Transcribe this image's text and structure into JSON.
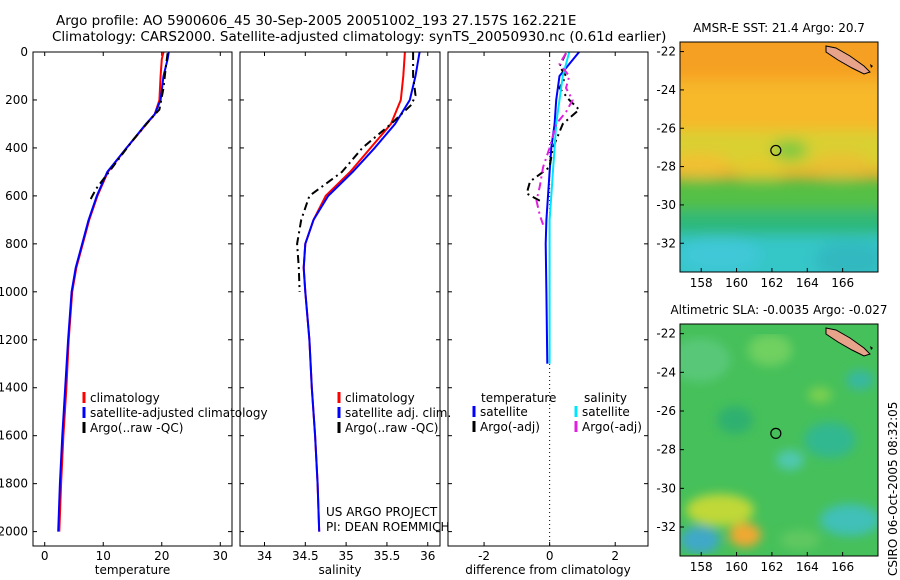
{
  "header": {
    "line1": "Argo profile: AO 5900606_45 30-Sep-2005 20051002_193 27.157S 162.221E",
    "line2": "Climatology: CARS2000. Satellite-adjusted climatology: synTS_20050930.nc (0.61d earlier)"
  },
  "credit": "CSIRO 06-Oct-2005 08:32:05",
  "colors": {
    "climatology": "#ff0000",
    "satellite": "#0000ff",
    "argo": "#000000",
    "sal_satellite": "#00e5ff",
    "sal_argo": "#e020e0"
  },
  "project_note": [
    "US ARGO PROJECT",
    "PI: DEAN ROEMMICH"
  ],
  "chart_data": [
    {
      "type": "line",
      "id": "temperature",
      "xlabel": "temperature",
      "ylabel": "",
      "xlim": [
        -2,
        32
      ],
      "ylim": [
        2060,
        0
      ],
      "xticks": [
        0,
        10,
        20,
        30
      ],
      "yticks": [
        0,
        200,
        400,
        600,
        800,
        1000,
        1200,
        1400,
        1600,
        1800,
        2000
      ],
      "legend": {
        "placement": "lower-left",
        "entries": [
          "climatology",
          "satellite-adjusted climatology",
          "Argo(..raw -QC)"
        ]
      },
      "series": [
        {
          "name": "climatology",
          "color": "#ff0000",
          "dash": "",
          "points": [
            [
              20.3,
              0
            ],
            [
              20,
              30
            ],
            [
              19.8,
              100
            ],
            [
              19.6,
              200
            ],
            [
              18.8,
              260
            ],
            [
              17.4,
              300
            ],
            [
              14,
              400
            ],
            [
              10.8,
              500
            ],
            [
              9,
              600
            ],
            [
              7.6,
              700
            ],
            [
              6.5,
              800
            ],
            [
              5.4,
              900
            ],
            [
              4.7,
              1000
            ],
            [
              4.1,
              1200
            ],
            [
              3.7,
              1400
            ],
            [
              3.2,
              1600
            ],
            [
              2.8,
              1800
            ],
            [
              2.5,
              2000
            ]
          ]
        },
        {
          "name": "satellite-adjusted climatology",
          "color": "#0000ff",
          "dash": "",
          "points": [
            [
              21.2,
              0
            ],
            [
              21,
              30
            ],
            [
              20.3,
              100
            ],
            [
              19.8,
              200
            ],
            [
              18.8,
              260
            ],
            [
              17.3,
              300
            ],
            [
              14,
              400
            ],
            [
              10.7,
              500
            ],
            [
              8.9,
              600
            ],
            [
              7.5,
              700
            ],
            [
              6.4,
              800
            ],
            [
              5.3,
              900
            ],
            [
              4.6,
              1000
            ],
            [
              4.0,
              1200
            ],
            [
              3.5,
              1400
            ],
            [
              3.0,
              1600
            ],
            [
              2.6,
              1800
            ],
            [
              2.3,
              2000
            ]
          ]
        },
        {
          "name": "Argo(..raw -QC)",
          "color": "#000000",
          "dash": "8 4 2 4",
          "points": [
            [
              21,
              5
            ],
            [
              20.7,
              60
            ],
            [
              20.3,
              150
            ],
            [
              19.6,
              240
            ],
            [
              18.1,
              280
            ],
            [
              15,
              370
            ],
            [
              11.6,
              480
            ],
            [
              8.8,
              570
            ],
            [
              7.7,
              620
            ]
          ]
        }
      ]
    },
    {
      "type": "line",
      "id": "salinity",
      "xlabel": "salinity",
      "ylabel": "",
      "xlim": [
        33.7,
        36.15
      ],
      "ylim": [
        2060,
        0
      ],
      "xticks": [
        34,
        34.5,
        35,
        35.5,
        36
      ],
      "xtick_labels": [
        "34",
        "34.5",
        "35",
        "35.5",
        "36"
      ],
      "legend": {
        "placement": "lower-left",
        "entries": [
          "climatology",
          "satellite adj. clim.",
          "Argo(..raw -QC)"
        ]
      },
      "series": [
        {
          "name": "climatology",
          "color": "#ff0000",
          "dash": "",
          "points": [
            [
              35.72,
              0
            ],
            [
              35.7,
              100
            ],
            [
              35.67,
              200
            ],
            [
              35.55,
              300
            ],
            [
              35.3,
              400
            ],
            [
              35.05,
              500
            ],
            [
              34.75,
              600
            ],
            [
              34.6,
              700
            ],
            [
              34.5,
              800
            ],
            [
              34.48,
              900
            ],
            [
              34.5,
              1000
            ],
            [
              34.55,
              1200
            ],
            [
              34.58,
              1400
            ],
            [
              34.62,
              1600
            ],
            [
              34.65,
              1800
            ],
            [
              34.67,
              2000
            ]
          ]
        },
        {
          "name": "satellite adj. clim.",
          "color": "#0000ff",
          "dash": "",
          "points": [
            [
              35.9,
              0
            ],
            [
              35.85,
              100
            ],
            [
              35.78,
              200
            ],
            [
              35.6,
              300
            ],
            [
              35.35,
              400
            ],
            [
              35.08,
              500
            ],
            [
              34.78,
              600
            ],
            [
              34.6,
              700
            ],
            [
              34.5,
              800
            ],
            [
              34.48,
              900
            ],
            [
              34.5,
              1000
            ],
            [
              34.55,
              1200
            ],
            [
              34.58,
              1400
            ],
            [
              34.62,
              1600
            ],
            [
              34.65,
              1800
            ],
            [
              34.67,
              2000
            ]
          ]
        },
        {
          "name": "Argo(..raw -QC)",
          "color": "#000000",
          "dash": "8 4 2 4",
          "points": [
            [
              35.82,
              0
            ],
            [
              35.82,
              100
            ],
            [
              35.85,
              180
            ],
            [
              35.8,
              220
            ],
            [
              35.55,
              300
            ],
            [
              35.2,
              400
            ],
            [
              34.95,
              500
            ],
            [
              34.55,
              600
            ],
            [
              34.45,
              700
            ],
            [
              34.4,
              800
            ],
            [
              34.42,
              900
            ],
            [
              34.43,
              1000
            ]
          ]
        }
      ]
    },
    {
      "type": "line",
      "id": "difference",
      "xlabel": "difference from climatology",
      "ylabel": "",
      "xlim": [
        -3.1,
        3.0
      ],
      "ylim": [
        2060,
        0
      ],
      "xticks": [
        -2,
        0,
        2
      ],
      "legend": {
        "placement": "lower-left",
        "headers": [
          "temperature",
          "salinity"
        ],
        "entries": [
          "satellite",
          "Argo(-adj)",
          "satellite",
          "Argo(-adj)"
        ]
      },
      "series": [
        {
          "name": "temperature satellite",
          "color": "#0000ff",
          "dash": "",
          "points": [
            [
              0.9,
              0
            ],
            [
              0.6,
              50
            ],
            [
              0.3,
              100
            ],
            [
              0.2,
              200
            ],
            [
              0.15,
              300
            ],
            [
              0.05,
              400
            ],
            [
              0,
              500
            ],
            [
              -0.05,
              600
            ],
            [
              -0.1,
              700
            ],
            [
              -0.12,
              800
            ],
            [
              -0.1,
              1000
            ],
            [
              -0.08,
              1200
            ],
            [
              -0.07,
              1300
            ]
          ]
        },
        {
          "name": "temperature Argo(-adj)",
          "color": "#000000",
          "dash": "8 4 2 4",
          "points": [
            [
              0.5,
              5
            ],
            [
              0.3,
              60
            ],
            [
              0.5,
              100
            ],
            [
              0.3,
              150
            ],
            [
              0.6,
              200
            ],
            [
              0.9,
              240
            ],
            [
              0.4,
              300
            ],
            [
              0.1,
              400
            ],
            [
              0,
              480
            ],
            [
              -0.6,
              540
            ],
            [
              -0.7,
              590
            ],
            [
              -0.3,
              620
            ]
          ]
        },
        {
          "name": "salinity satellite",
          "color": "#00e5ff",
          "dash": "",
          "points": [
            [
              0.6,
              0
            ],
            [
              0.4,
              100
            ],
            [
              0.3,
              200
            ],
            [
              0.2,
              300
            ],
            [
              0.15,
              400
            ],
            [
              0.1,
              500
            ],
            [
              0.05,
              600
            ],
            [
              0,
              700
            ],
            [
              0,
              800
            ],
            [
              0,
              900
            ],
            [
              0,
              1000
            ],
            [
              0,
              1100
            ],
            [
              0,
              1200
            ],
            [
              0,
              1300
            ]
          ]
        },
        {
          "name": "salinity Argo(-adj)",
          "color": "#e020e0",
          "dash": "8 4 2 4",
          "points": [
            [
              0.5,
              5
            ],
            [
              0.3,
              50
            ],
            [
              0.6,
              100
            ],
            [
              0.5,
              150
            ],
            [
              0.7,
              200
            ],
            [
              0.5,
              250
            ],
            [
              0.2,
              300
            ],
            [
              0,
              400
            ],
            [
              -0.2,
              480
            ],
            [
              -0.3,
              560
            ],
            [
              -0.4,
              620
            ],
            [
              -0.3,
              680
            ],
            [
              -0.2,
              720
            ]
          ]
        }
      ]
    },
    {
      "type": "heatmap",
      "id": "sst-map",
      "title": "AMSR-E SST: 21.4  Argo: 20.7",
      "xlim": [
        156.8,
        168
      ],
      "ylim": [
        -33.5,
        -21.5
      ],
      "xticks": [
        158,
        160,
        162,
        164,
        166
      ],
      "yticks": [
        -22,
        -24,
        -26,
        -28,
        -30,
        -32
      ],
      "marker": {
        "lon": 162.221,
        "lat": -27.157
      }
    },
    {
      "type": "heatmap",
      "id": "sla-map",
      "title": "Altimetric SLA: -0.0035  Argo: -0.027",
      "xlim": [
        156.8,
        168
      ],
      "ylim": [
        -33.5,
        -21.5
      ],
      "xticks": [
        158,
        160,
        162,
        164,
        166
      ],
      "yticks": [
        -22,
        -24,
        -26,
        -28,
        -30,
        -32
      ],
      "marker": {
        "lon": 162.221,
        "lat": -27.157
      }
    }
  ]
}
